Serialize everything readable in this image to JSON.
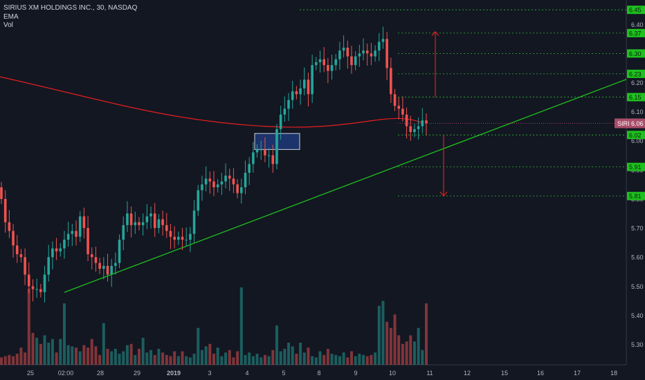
{
  "header": {
    "title": "SIRIUS XM HOLDINGS INC., 30, NASDAQ",
    "indicators": [
      "EMA",
      "Vol"
    ]
  },
  "colors": {
    "background": "#131722",
    "grid": "#363a45",
    "axis_text": "#b2b5be",
    "up": "#26a69a",
    "down": "#ef5350",
    "ema": "#e91e1e",
    "trendline": "#1ec21e",
    "level_line": "#2bbd2b",
    "level_label_bg": "#1ec21e",
    "arrow": "#e0201a",
    "box_fill": "#1e3a78",
    "price_tag_bg": "#a94d6a"
  },
  "price_tag": {
    "symbol": "SIRI",
    "value": "6.06"
  },
  "chart_data": {
    "type": "candlestick",
    "title": "SIRIUS XM HOLDINGS INC., 30, NASDAQ",
    "y_axis_ticks": [
      "6.40",
      "6.30",
      "6.20",
      "6.10",
      "6.00",
      "5.90",
      "5.80",
      "5.70",
      "5.60",
      "5.50",
      "5.40",
      "5.30"
    ],
    "ylim": [
      5.23,
      6.46
    ],
    "x_axis_ticks": [
      "25",
      "02:00",
      "28",
      "29",
      "2019",
      "3",
      "4",
      "5",
      "8",
      "9",
      "10",
      "11",
      "12",
      "15",
      "16",
      "17",
      "18"
    ],
    "level_lines": [
      "6.45",
      "6.37",
      "6.30",
      "6.23",
      "6.15",
      "6.02",
      "5.91",
      "5.81"
    ],
    "grid": true,
    "close_series": [
      5.8,
      5.72,
      5.69,
      5.64,
      5.61,
      5.6,
      5.54,
      5.5,
      5.49,
      5.49,
      5.48,
      5.54,
      5.6,
      5.63,
      5.62,
      5.63,
      5.66,
      5.68,
      5.69,
      5.67,
      5.74,
      5.7,
      5.61,
      5.6,
      5.58,
      5.56,
      5.57,
      5.54,
      5.57,
      5.58,
      5.66,
      5.71,
      5.75,
      5.71,
      5.72,
      5.71,
      5.72,
      5.74,
      5.75,
      5.7,
      5.73,
      5.71,
      5.69,
      5.67,
      5.66,
      5.67,
      5.66,
      5.66,
      5.68,
      5.76,
      5.83,
      5.85,
      5.87,
      5.86,
      5.84,
      5.85,
      5.86,
      5.88,
      5.87,
      5.85,
      5.82,
      5.84,
      5.89,
      5.92,
      5.96,
      5.97,
      5.97,
      5.95,
      5.95,
      5.92,
      6.04,
      6.09,
      6.11,
      6.14,
      6.17,
      6.16,
      6.18,
      6.21,
      6.16,
      6.26,
      6.27,
      6.28,
      6.26,
      6.24,
      6.26,
      6.28,
      6.31,
      6.32,
      6.29,
      6.26,
      6.29,
      6.3,
      6.31,
      6.3,
      6.29,
      6.31,
      6.34,
      6.35,
      6.25,
      6.16,
      6.12,
      6.11,
      6.09,
      6.05,
      6.03,
      6.04,
      6.05,
      6.07,
      6.06
    ],
    "volume_series": [
      6,
      7,
      8,
      7,
      9,
      14,
      10,
      62,
      26,
      22,
      17,
      24,
      18,
      21,
      10,
      21,
      50,
      16,
      15,
      14,
      11,
      16,
      14,
      21,
      15,
      8,
      34,
      13,
      11,
      13,
      9,
      11,
      16,
      17,
      8,
      13,
      22,
      10,
      12,
      8,
      13,
      10,
      8,
      7,
      11,
      7,
      11,
      7,
      6,
      9,
      30,
      12,
      15,
      17,
      9,
      14,
      7,
      10,
      12,
      6,
      11,
      63,
      8,
      10,
      7,
      9,
      6,
      8,
      7,
      12,
      32,
      11,
      13,
      18,
      15,
      9,
      18,
      10,
      14,
      7,
      6,
      11,
      8,
      13,
      9,
      8,
      7,
      10,
      6,
      11,
      7,
      9,
      8,
      7,
      8,
      10,
      48,
      52,
      35,
      30,
      41,
      24,
      17,
      19,
      24,
      19,
      30,
      12,
      50
    ],
    "ema_series": [
      6.22,
      6.05,
      6.02
    ]
  }
}
